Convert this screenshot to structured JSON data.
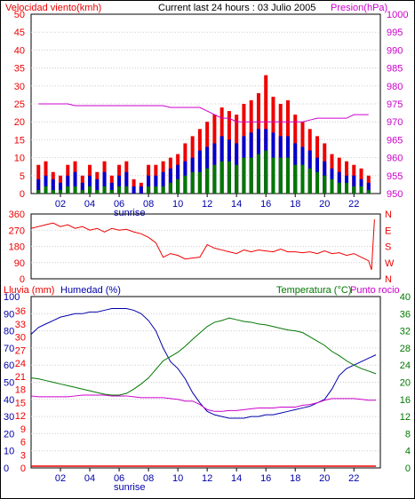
{
  "colors": {
    "wind": "#ee0000",
    "gust": "#ee0000",
    "avg_wind": "#0000cc",
    "wind_low": "#007700",
    "pressure": "#cc00cc",
    "direction": "#ee0000",
    "rain": "#ee0000",
    "humidity": "#0000aa",
    "temperature": "#007700",
    "dewpoint": "#cc00cc",
    "frame": "#000000",
    "grid": "#ffffff"
  },
  "header": {
    "wind_title": "Velocidad viento(kmh)",
    "center_title": "Current last 24 hours : 03 Julio 2005",
    "pressure_title": "Presion(hPa)"
  },
  "footer_labels": {
    "panel1_sunrise": "sunrise",
    "panel3_sunrise": "sunrise"
  },
  "legend_bottom": {
    "rain": "Lluvia (mm)",
    "humidity": "Humedad (%)",
    "temp": "Temperatura (°C)",
    "dewpoint": "Punto rocio"
  },
  "chart_data": [
    {
      "type": "bar",
      "x": [
        0.5,
        1.0,
        1.5,
        2.0,
        2.5,
        3.0,
        3.5,
        4.0,
        4.5,
        5.0,
        5.5,
        6.0,
        6.5,
        7.0,
        7.5,
        8.0,
        8.5,
        9.0,
        9.5,
        10.0,
        10.5,
        11.0,
        11.5,
        12.0,
        12.5,
        13.0,
        13.5,
        14.0,
        14.5,
        15.0,
        15.5,
        16.0,
        16.5,
        17.0,
        17.5,
        18.0,
        18.5,
        19.0,
        19.5,
        20.0,
        20.5,
        21.0,
        21.5,
        22.0,
        22.5,
        23.0
      ],
      "xticks": [
        "02",
        "04",
        "06",
        "08",
        "10",
        "12",
        "14",
        "16",
        "18",
        "20",
        "22"
      ],
      "ylim": [
        0,
        50
      ],
      "yticks": [
        0,
        5,
        10,
        15,
        20,
        25,
        30,
        35,
        40,
        45,
        50
      ],
      "y2lim": [
        950,
        1000
      ],
      "y2ticks": [
        950,
        955,
        960,
        965,
        970,
        975,
        980,
        985,
        990,
        995,
        1000
      ],
      "ylabel": "Velocidad viento(kmh)",
      "y2label": "Presion(hPa)",
      "series": [
        {
          "values": [
            8,
            9,
            6,
            5,
            8,
            9,
            5,
            8,
            6,
            9,
            5,
            8,
            9,
            4,
            3,
            8,
            8,
            9,
            10,
            11,
            14,
            16,
            18,
            20,
            22,
            24,
            23,
            22,
            25,
            26,
            28,
            33,
            27,
            25,
            26,
            22,
            20,
            18,
            16,
            14,
            11,
            10,
            9,
            8,
            7,
            5
          ]
        },
        {
          "values": [
            4,
            5,
            4,
            3,
            5,
            6,
            3,
            5,
            4,
            6,
            3,
            5,
            6,
            2,
            2,
            5,
            5,
            6,
            7,
            8,
            9,
            10,
            12,
            13,
            14,
            16,
            15,
            14,
            16,
            17,
            18,
            18,
            17,
            16,
            16,
            14,
            13,
            12,
            10,
            9,
            7,
            6,
            5,
            5,
            4,
            3
          ]
        },
        {
          "values": [
            1,
            2,
            1,
            1,
            2,
            2,
            1,
            2,
            1,
            2,
            1,
            2,
            2,
            0,
            0,
            2,
            2,
            2,
            3,
            4,
            5,
            6,
            6,
            7,
            8,
            9,
            9,
            8,
            10,
            10,
            11,
            12,
            10,
            10,
            10,
            8,
            8,
            7,
            6,
            5,
            4,
            3,
            3,
            2,
            2,
            1
          ]
        },
        {
          "values": [
            975,
            975,
            975,
            975,
            975,
            974.5,
            974.5,
            974.5,
            974.5,
            974.5,
            974.5,
            974.5,
            974.5,
            974.5,
            974.5,
            974.5,
            974.5,
            974.5,
            974,
            974,
            974,
            974,
            974,
            973,
            972,
            971,
            971,
            970,
            970,
            970,
            970,
            970,
            970,
            970,
            970,
            970,
            970,
            970.5,
            971,
            971,
            971,
            971,
            971,
            972,
            972,
            972
          ]
        }
      ]
    },
    {
      "type": "line",
      "x": [
        0.0,
        0.5,
        1.0,
        1.5,
        2.0,
        2.5,
        3.0,
        3.5,
        4.0,
        4.5,
        5.0,
        5.5,
        6.0,
        6.5,
        7.0,
        7.5,
        8.0,
        8.5,
        9.0,
        9.5,
        10.0,
        10.5,
        11.0,
        11.5,
        12.0,
        12.5,
        13.0,
        13.5,
        14.0,
        14.5,
        15.0,
        15.5,
        16.0,
        16.5,
        17.0,
        17.5,
        18.0,
        18.5,
        19.0,
        19.5,
        20.0,
        20.5,
        21.0,
        21.5,
        22.0,
        22.5,
        23.0,
        23.2,
        23.4
      ],
      "xticks": [
        "02",
        "04",
        "06",
        "08",
        "10",
        "12",
        "14",
        "16",
        "18",
        "20",
        "22"
      ],
      "ylim": [
        0,
        360
      ],
      "yticks": [
        0,
        90,
        180,
        270,
        360
      ],
      "y2ticks": [
        "N",
        "W",
        "S",
        "E",
        "N"
      ],
      "series": [
        {
          "values": [
            280,
            290,
            300,
            310,
            290,
            300,
            280,
            290,
            270,
            280,
            260,
            280,
            270,
            275,
            260,
            250,
            230,
            200,
            120,
            140,
            130,
            110,
            115,
            120,
            190,
            170,
            160,
            150,
            140,
            160,
            150,
            160,
            155,
            150,
            165,
            150,
            150,
            145,
            150,
            140,
            155,
            140,
            145,
            130,
            140,
            120,
            100,
            50,
            330
          ]
        }
      ]
    },
    {
      "type": "line",
      "x": [
        0.0,
        0.5,
        1.0,
        1.5,
        2.0,
        2.5,
        3.0,
        3.5,
        4.0,
        4.5,
        5.0,
        5.5,
        6.0,
        6.5,
        7.0,
        7.5,
        8.0,
        8.5,
        9.0,
        9.5,
        10.0,
        10.5,
        11.0,
        11.5,
        12.0,
        12.5,
        13.0,
        13.5,
        14.0,
        14.5,
        15.0,
        15.5,
        16.0,
        16.5,
        17.0,
        17.5,
        18.0,
        18.5,
        19.0,
        19.5,
        20.0,
        20.5,
        21.0,
        21.5,
        22.0,
        22.5,
        23.0,
        23.5
      ],
      "xticks": [
        "02",
        "04",
        "06",
        "08",
        "10",
        "12",
        "14",
        "16",
        "18",
        "20",
        "22"
      ],
      "ylim": [
        0,
        100
      ],
      "yticks": [
        0,
        10,
        20,
        30,
        40,
        50,
        60,
        70,
        80,
        90,
        100
      ],
      "yticks_left2": [
        0,
        3,
        6,
        9,
        12,
        15,
        18,
        21,
        24,
        27,
        30,
        33,
        36
      ],
      "y2lim": [
        0,
        40
      ],
      "y2ticks": [
        0,
        4,
        8,
        12,
        16,
        20,
        24,
        28,
        32,
        36,
        40
      ],
      "y2label": "Temperatura (°C)",
      "series": [
        {
          "values": [
            78,
            82,
            84,
            86,
            88,
            89,
            90,
            90,
            91,
            91,
            92,
            93,
            93,
            93,
            92,
            90,
            86,
            80,
            70,
            62,
            58,
            52,
            44,
            38,
            33,
            31,
            30,
            29,
            29,
            29,
            30,
            30,
            31,
            31,
            32,
            33,
            34,
            35,
            36,
            38,
            40,
            46,
            54,
            58,
            60,
            62,
            64,
            66
          ]
        },
        {
          "values": [
            21.0,
            20.8,
            20.4,
            20.0,
            19.6,
            19.2,
            18.8,
            18.4,
            18.0,
            17.6,
            17.2,
            17.0,
            17.0,
            17.4,
            18.4,
            19.6,
            21.0,
            23.0,
            25.0,
            26.0,
            27.0,
            28.4,
            30.0,
            31.5,
            33.0,
            34.0,
            34.4,
            35.0,
            34.6,
            34.2,
            34.0,
            33.6,
            33.4,
            33.0,
            32.6,
            32.2,
            32.0,
            31.6,
            30.6,
            29.6,
            28.6,
            27.2,
            26.2,
            25.0,
            24.0,
            23.2,
            22.6,
            22.0
          ]
        },
        {
          "values": [
            16.8,
            16.6,
            16.6,
            16.6,
            16.6,
            16.6,
            16.8,
            17.0,
            17.0,
            17.0,
            17.0,
            16.8,
            16.8,
            16.8,
            16.6,
            16.4,
            16.4,
            16.4,
            16.4,
            16.2,
            16.0,
            15.6,
            15.6,
            14.8,
            13.6,
            13.2,
            13.2,
            13.4,
            13.4,
            13.6,
            13.8,
            14.0,
            14.0,
            14.0,
            14.2,
            14.2,
            14.2,
            14.6,
            14.8,
            15.2,
            15.8,
            16.2,
            16.2,
            16.2,
            16.2,
            16.0,
            15.8,
            15.8
          ]
        },
        {
          "values": [
            0,
            0,
            0,
            0,
            0,
            0,
            0,
            0,
            0,
            0,
            0,
            0,
            0,
            0,
            0,
            0,
            0,
            0,
            0,
            0,
            0,
            0,
            0,
            0,
            0,
            0,
            0,
            0,
            0,
            0,
            0,
            0,
            0,
            0,
            0,
            0,
            0,
            0,
            0,
            0,
            0,
            0,
            0,
            0,
            0,
            0,
            0,
            0
          ]
        }
      ]
    }
  ]
}
